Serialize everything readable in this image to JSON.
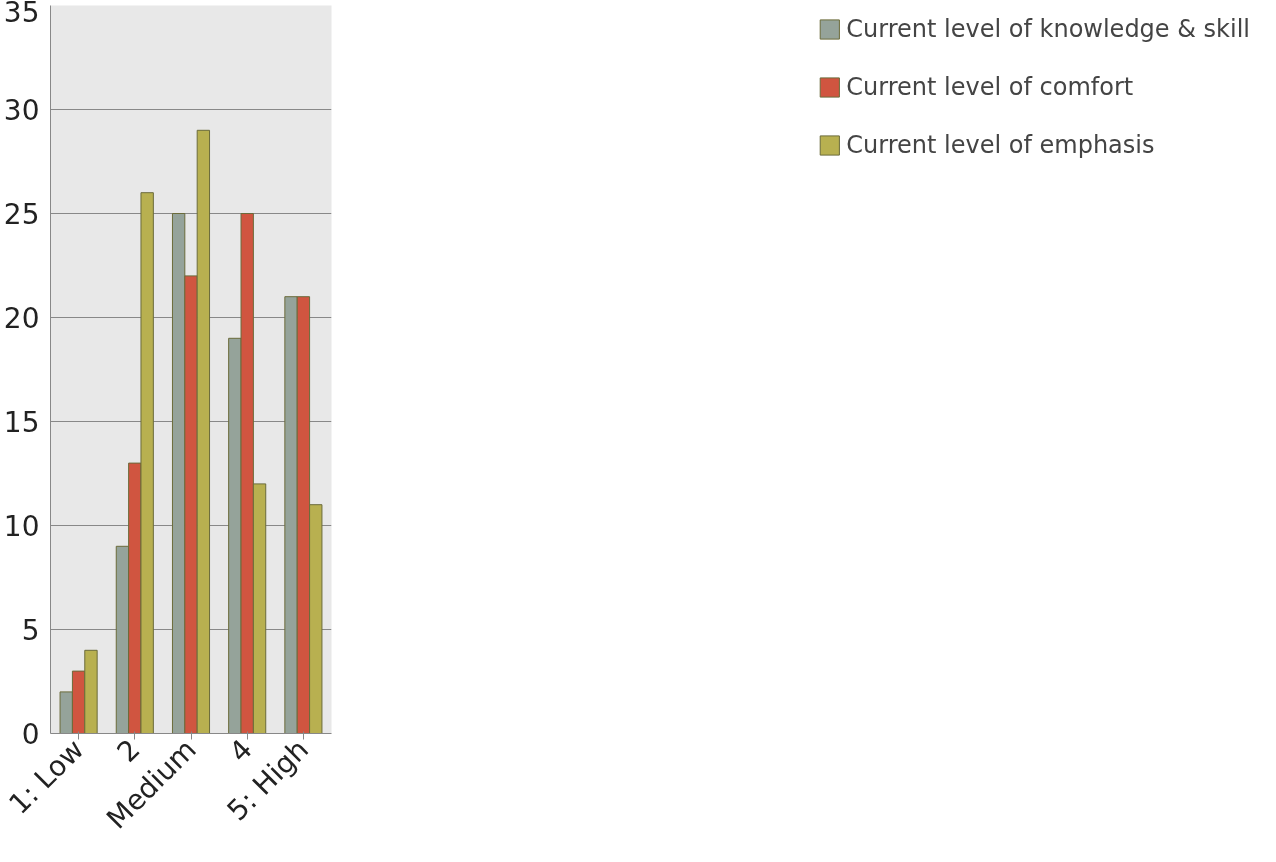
{
  "chart_data": {
    "type": "bar",
    "categories": [
      "1: Low",
      "2",
      "Medium",
      "4",
      "5: High"
    ],
    "series": [
      {
        "name": "Current level of knowledge & skill",
        "color": "#95a39a",
        "values": [
          2,
          9,
          25,
          19,
          21
        ]
      },
      {
        "name": "Current level of comfort",
        "color": "#d05540",
        "values": [
          3,
          13,
          22,
          25,
          21
        ]
      },
      {
        "name": "Current level of emphasis",
        "color": "#b8b050",
        "values": [
          4,
          26,
          29,
          12,
          11
        ]
      }
    ],
    "ylim": [
      0,
      35
    ],
    "yticks": [
      0,
      5,
      10,
      15,
      20,
      25,
      30,
      35
    ],
    "grid": "y",
    "legend": "right"
  }
}
